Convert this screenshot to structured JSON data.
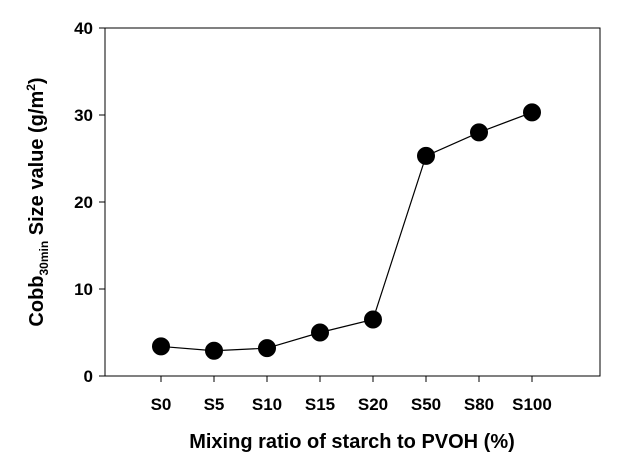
{
  "chart_data": {
    "type": "line",
    "categories": [
      "S0",
      "S5",
      "S10",
      "S15",
      "S20",
      "S50",
      "S80",
      "S100"
    ],
    "series": [
      {
        "values": [
          3.4,
          2.9,
          3.2,
          5.0,
          6.5,
          25.3,
          28.0,
          30.3
        ]
      }
    ],
    "xlabel": "Mixing ratio of starch to PVOH (%)",
    "ylabel": {
      "prefix": "Cobb",
      "subscript": "30min",
      "middle": " Size value (g/m",
      "superscript": "2",
      "suffix": ")"
    },
    "ylim": [
      0,
      40
    ],
    "yticks": [
      0,
      10,
      20,
      30,
      40
    ],
    "grid": false,
    "legend": "none",
    "colors": {
      "line": "#000000",
      "marker": "#000000"
    }
  }
}
